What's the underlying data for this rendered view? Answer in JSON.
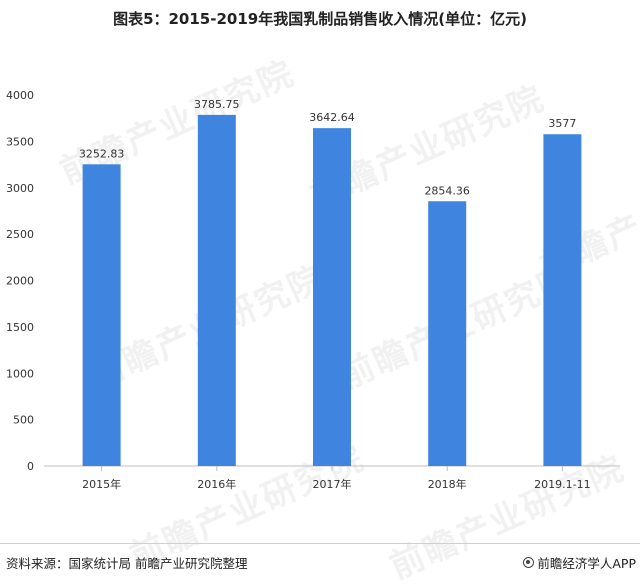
{
  "title": "图表5：2015-2019年我国乳制品销售收入情况(单位：亿元)",
  "watermark": "前瞻产业研究院",
  "source": "资料来源：国家统计局 前瞻产业研究院整理",
  "brand": "前瞻经济学人APP",
  "colors": {
    "bar": "#3f85e0",
    "axis": "#bfbfbf",
    "text": "#333333"
  },
  "chart_data": {
    "type": "bar",
    "title": "图表5：2015-2019年我国乳制品销售收入情况(单位：亿元)",
    "categories": [
      "2015年",
      "2016年",
      "2017年",
      "2018年",
      "2019.1-11"
    ],
    "values": [
      3252.83,
      3785.75,
      3642.64,
      2854.36,
      3577
    ],
    "data_labels": [
      "3252.83",
      "3785.75",
      "3642.64",
      "2854.36",
      "3577"
    ],
    "y_ticks": [
      0,
      500,
      1000,
      1500,
      2000,
      2500,
      3000,
      3500,
      4000
    ],
    "ylim": [
      0,
      4000
    ],
    "grid": false,
    "legend": "none"
  }
}
